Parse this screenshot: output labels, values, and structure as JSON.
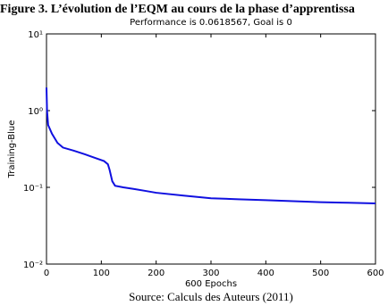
{
  "caption": "Figure 3. L’évolution de l’EQM au cours de la phase d’apprentissa",
  "source": "Source: Calculs des Auteurs (2011)",
  "chart_data": {
    "type": "line",
    "title": "Performance is 0.0618567, Goal is 0",
    "xlabel": "600 Epochs",
    "ylabel": "Training-Blue",
    "x": [
      0,
      1,
      3,
      10,
      20,
      30,
      50,
      70,
      90,
      105,
      112,
      115,
      120,
      125,
      140,
      160,
      180,
      200,
      250,
      300,
      350,
      400,
      450,
      500,
      550,
      600
    ],
    "values": [
      2.0,
      1.0,
      0.65,
      0.5,
      0.38,
      0.33,
      0.3,
      0.27,
      0.24,
      0.22,
      0.2,
      0.17,
      0.12,
      0.105,
      0.1,
      0.095,
      0.09,
      0.085,
      0.078,
      0.072,
      0.07,
      0.068,
      0.066,
      0.064,
      0.063,
      0.0618567
    ],
    "color": "#1010e0",
    "yscale": "log",
    "xlim": [
      0,
      600
    ],
    "xticks": [
      0,
      100,
      200,
      300,
      400,
      500,
      600
    ],
    "ylim": [
      0.01,
      10
    ],
    "yticks": [
      {
        "value": 0.01,
        "label": "10⁻²"
      },
      {
        "value": 0.1,
        "label": "10⁻¹"
      },
      {
        "value": 1,
        "label": "10⁰"
      },
      {
        "value": 10,
        "label": "10¹"
      }
    ],
    "grid": false
  }
}
